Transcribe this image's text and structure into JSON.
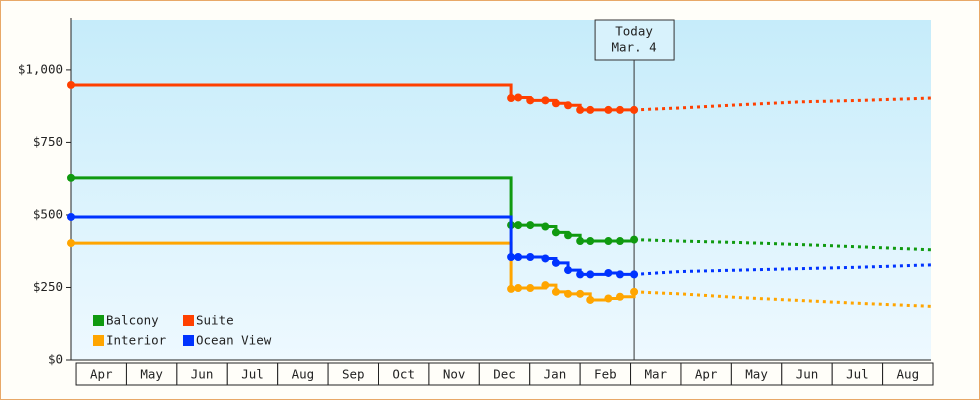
{
  "chart_data": {
    "type": "line",
    "step": true,
    "x": [
      -0.1,
      8.63,
      8.77,
      9.01,
      9.31,
      9.52,
      9.76,
      10.0,
      10.2,
      10.56,
      10.79,
      11.07,
      11.98,
      13.17,
      14.37,
      15.56,
      16.96
    ],
    "series": [
      {
        "name": "Balcony",
        "color": "#109a10",
        "values": [
          628,
          465,
          465,
          465,
          460,
          440,
          430,
          410,
          410,
          410,
          410,
          415,
          410,
          405,
          398,
          390,
          380
        ]
      },
      {
        "name": "Suite",
        "color": "#ff4000",
        "values": [
          948,
          903,
          905,
          895,
          895,
          885,
          878,
          862,
          862,
          862,
          862,
          862,
          869,
          880,
          890,
          895,
          903
        ]
      },
      {
        "name": "Interior",
        "color": "#ffa500",
        "values": [
          403,
          245,
          248,
          248,
          258,
          235,
          228,
          228,
          207,
          212,
          218,
          235,
          228,
          215,
          205,
          195,
          185
        ]
      },
      {
        "name": "Ocean View",
        "color": "#0033ff",
        "values": [
          493,
          355,
          355,
          355,
          350,
          335,
          310,
          295,
          295,
          300,
          295,
          295,
          305,
          310,
          315,
          320,
          328
        ]
      }
    ],
    "today": {
      "x": 11.07,
      "label": "Today",
      "date": "Mar. 4"
    },
    "xlim": [
      -0.1,
      16.96
    ],
    "xticks": [
      {
        "value": 0.5,
        "label": "Apr"
      },
      {
        "value": 1.5,
        "label": "May"
      },
      {
        "value": 2.5,
        "label": "Jun"
      },
      {
        "value": 3.5,
        "label": "Jul"
      },
      {
        "value": 4.5,
        "label": "Aug"
      },
      {
        "value": 5.5,
        "label": "Sep"
      },
      {
        "value": 6.5,
        "label": "Oct"
      },
      {
        "value": 7.5,
        "label": "Nov"
      },
      {
        "value": 8.5,
        "label": "Dec"
      },
      {
        "value": 9.5,
        "label": "Jan"
      },
      {
        "value": 10.5,
        "label": "Feb"
      },
      {
        "value": 11.5,
        "label": "Mar"
      },
      {
        "value": 12.5,
        "label": "Apr"
      },
      {
        "value": 13.5,
        "label": "May"
      },
      {
        "value": 14.5,
        "label": "Jun"
      },
      {
        "value": 15.5,
        "label": "Jul"
      },
      {
        "value": 16.5,
        "label": "Aug"
      }
    ],
    "ylim": [
      0,
      1172
    ],
    "yticks": [
      {
        "value": 0,
        "label": "$0"
      },
      {
        "value": 250,
        "label": "$250"
      },
      {
        "value": 500,
        "label": "$500"
      },
      {
        "value": 750,
        "label": "$750"
      },
      {
        "value": 1000,
        "label": "$1,000"
      }
    ],
    "legend": "lower-left"
  }
}
